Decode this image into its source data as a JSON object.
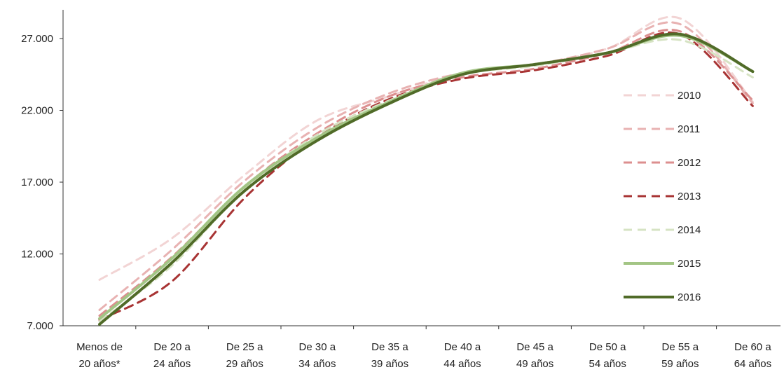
{
  "chart_data": {
    "type": "line",
    "title": "",
    "xlabel": "",
    "ylabel": "",
    "ylim": [
      7000,
      27000
    ],
    "yticks": [
      "7.000",
      "12.000",
      "17.000",
      "22.000",
      "27.000"
    ],
    "categories": [
      [
        "Menos de",
        "20 años*"
      ],
      [
        "De 20 a",
        "24 años"
      ],
      [
        "De 25 a",
        "29 años"
      ],
      [
        "De 30 a",
        "34 años"
      ],
      [
        "De 35 a",
        "39 años"
      ],
      [
        "De 40 a",
        "44 años"
      ],
      [
        "De 45 a",
        "49 años"
      ],
      [
        "De 50 a",
        "54 años"
      ],
      [
        "De 55 a",
        "59 años"
      ],
      [
        "De 60 a",
        "64 años"
      ]
    ],
    "legend_position": "right",
    "grid": false,
    "series": [
      {
        "name": "2010",
        "color": "#f2d4d4",
        "dash": true,
        "values": [
          10200,
          13100,
          17500,
          21300,
          23000,
          24600,
          25200,
          26300,
          28400,
          22600
        ]
      },
      {
        "name": "2011",
        "color": "#e8b2b2",
        "dash": true,
        "values": [
          8100,
          12300,
          17100,
          20800,
          23200,
          24600,
          25200,
          26300,
          28000,
          22500
        ]
      },
      {
        "name": "2012",
        "color": "#dc8f8f",
        "dash": true,
        "values": [
          7700,
          11800,
          16700,
          20400,
          23000,
          24300,
          24900,
          26000,
          27500,
          22700
        ]
      },
      {
        "name": "2013",
        "color": "#a83434",
        "dash": true,
        "values": [
          7400,
          10100,
          15900,
          20100,
          22800,
          24200,
          24800,
          25800,
          27300,
          22300
        ]
      },
      {
        "name": "2014",
        "color": "#d6e3c3",
        "dash": true,
        "values": [
          7300,
          11200,
          16500,
          20300,
          22700,
          24500,
          25100,
          26000,
          26900,
          24300
        ]
      },
      {
        "name": "2015",
        "color": "#a3c585",
        "dash": false,
        "values": [
          7500,
          11700,
          16700,
          20100,
          22600,
          24600,
          25200,
          26000,
          27200,
          24700
        ]
      },
      {
        "name": "2016",
        "color": "#506b28",
        "dash": false,
        "values": [
          7100,
          11400,
          16400,
          19900,
          22500,
          24500,
          25200,
          26000,
          27300,
          24700
        ]
      }
    ]
  }
}
